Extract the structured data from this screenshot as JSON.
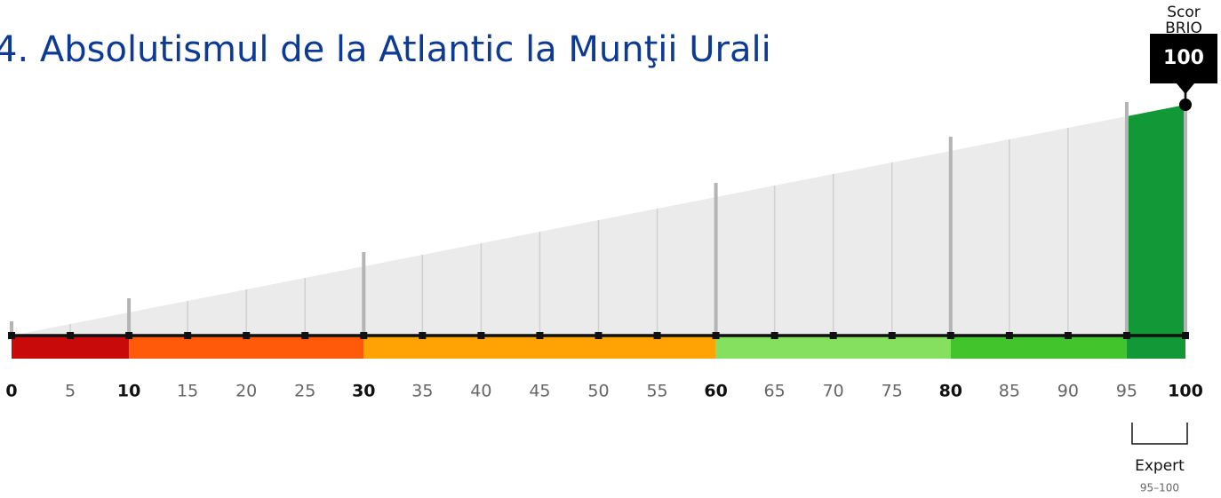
{
  "chart_data": {
    "type": "score-scale",
    "title": "4. Absolutismul de la Atlantic la Munţii Urali",
    "score_label": [
      "Scor",
      "BRIO"
    ],
    "score": 100,
    "xlim": [
      0,
      100
    ],
    "xticks": [
      0,
      5,
      10,
      15,
      20,
      25,
      30,
      35,
      40,
      45,
      50,
      55,
      60,
      65,
      70,
      75,
      80,
      85,
      90,
      95,
      100
    ],
    "major_ticks": [
      0,
      10,
      30,
      60,
      80,
      100
    ],
    "bands": [
      {
        "from": 0,
        "to": 10,
        "color": "#c80a0a"
      },
      {
        "from": 10,
        "to": 30,
        "color": "#ff5a0a"
      },
      {
        "from": 30,
        "to": 60,
        "color": "#ffa305"
      },
      {
        "from": 60,
        "to": 80,
        "color": "#86e060"
      },
      {
        "from": 80,
        "to": 95,
        "color": "#42c52c"
      },
      {
        "from": 95,
        "to": 100,
        "color": "#129837"
      }
    ],
    "level": {
      "name": "Expert",
      "range_label": "95–100",
      "from": 95,
      "to": 100,
      "color": "#129837"
    }
  }
}
